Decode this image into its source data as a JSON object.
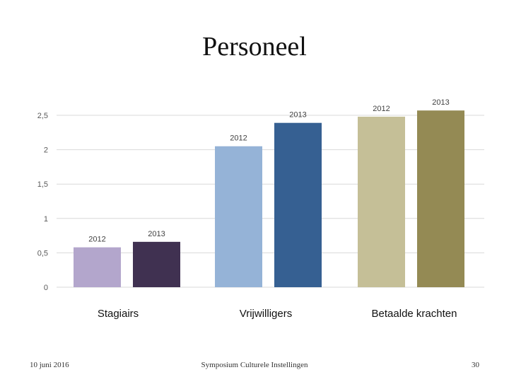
{
  "slide": {
    "title": "Personeel",
    "footer_date": "10 juni 2016",
    "footer_center": "Symposium Culturele Instellingen",
    "page_number": "30"
  },
  "chart_data": {
    "type": "bar",
    "categories": [
      "Stagiairs",
      "Vrijwilligers",
      "Betaalde krachten"
    ],
    "series": [
      {
        "name": "2012",
        "values": [
          0.58,
          2.05,
          2.48
        ],
        "colors": [
          "#b3a6cc",
          "#95b3d7",
          "#c5bf97"
        ]
      },
      {
        "name": "2013",
        "values": [
          0.66,
          2.39,
          2.57
        ],
        "colors": [
          "#403151",
          "#366092",
          "#948a54"
        ]
      }
    ],
    "ylim": [
      0,
      2.5
    ],
    "yticks": [
      "0",
      "0,5",
      "1",
      "1,5",
      "2",
      "2,5"
    ],
    "ytick_values": [
      0,
      0.5,
      1,
      1.5,
      2,
      2.5
    ],
    "grid": true,
    "data_labels": true
  }
}
